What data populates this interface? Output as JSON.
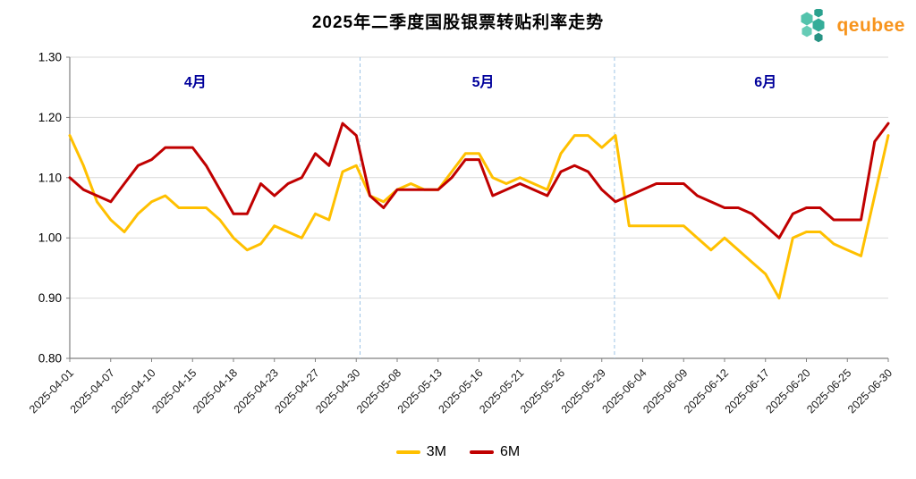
{
  "header": {
    "logo_text": "qeubee"
  },
  "colors": {
    "line_3m": "#FFC000",
    "line_6m": "#C00000",
    "grid": "#D9D9D9",
    "axis": "#808080",
    "divider": "#9DC3E6",
    "month_label": "#00009B",
    "title_text": "#000000",
    "logo_orange": "#F7941D",
    "logo_hex": [
      "#53C3AC",
      "#2AA18E",
      "#35AD99",
      "#66CCB6",
      "#279384"
    ]
  },
  "chart_data": {
    "type": "line",
    "title": "2025年二季度国股银票转贴利率走势",
    "xlabel": "",
    "ylabel": "",
    "ylim": [
      0.8,
      1.3
    ],
    "grid": true,
    "legend_position": "bottom",
    "y_ticks": [
      1.3,
      1.2,
      1.1,
      1.0,
      0.9,
      0.8
    ],
    "x": [
      "2025-04-01",
      "2025-04-02",
      "2025-04-03",
      "2025-04-07",
      "2025-04-08",
      "2025-04-09",
      "2025-04-10",
      "2025-04-11",
      "2025-04-14",
      "2025-04-15",
      "2025-04-16",
      "2025-04-17",
      "2025-04-18",
      "2025-04-21",
      "2025-04-22",
      "2025-04-23",
      "2025-04-24",
      "2025-04-25",
      "2025-04-27",
      "2025-04-28",
      "2025-04-29",
      "2025-04-30",
      "2025-05-06",
      "2025-05-07",
      "2025-05-08",
      "2025-05-09",
      "2025-05-12",
      "2025-05-13",
      "2025-05-14",
      "2025-05-15",
      "2025-05-16",
      "2025-05-19",
      "2025-05-20",
      "2025-05-21",
      "2025-05-22",
      "2025-05-23",
      "2025-05-26",
      "2025-05-27",
      "2025-05-28",
      "2025-05-29",
      "2025-05-30",
      "2025-06-03",
      "2025-06-04",
      "2025-06-05",
      "2025-06-06",
      "2025-06-09",
      "2025-06-10",
      "2025-06-11",
      "2025-06-12",
      "2025-06-13",
      "2025-06-16",
      "2025-06-17",
      "2025-06-18",
      "2025-06-19",
      "2025-06-20",
      "2025-06-23",
      "2025-06-24",
      "2025-06-25",
      "2025-06-26",
      "2025-06-27",
      "2025-06-30"
    ],
    "x_tick_labels": [
      "2025-04-01",
      "2025-04-07",
      "2025-04-10",
      "2025-04-15",
      "2025-04-18",
      "2025-04-23",
      "2025-04-27",
      "2025-04-30",
      "2025-05-08",
      "2025-05-13",
      "2025-05-16",
      "2025-05-21",
      "2025-05-26",
      "2025-05-29",
      "2025-06-04",
      "2025-06-09",
      "2025-06-12",
      "2025-06-17",
      "2025-06-20",
      "2025-06-25",
      "2025-06-30"
    ],
    "months": [
      {
        "label": "4月",
        "index": 9.2
      },
      {
        "label": "5月",
        "index": 30.3
      },
      {
        "label": "6月",
        "index": 51.0
      }
    ],
    "dividers_index": [
      21.28,
      39.93
    ],
    "series": [
      {
        "name": "3M",
        "color": "#FFC000",
        "values": [
          1.17,
          1.12,
          1.06,
          1.03,
          1.01,
          1.04,
          1.06,
          1.07,
          1.05,
          1.05,
          1.05,
          1.03,
          1.0,
          0.98,
          0.99,
          1.02,
          1.01,
          1.0,
          1.04,
          1.03,
          1.11,
          1.12,
          1.07,
          1.06,
          1.08,
          1.09,
          1.08,
          1.08,
          1.11,
          1.14,
          1.14,
          1.1,
          1.09,
          1.1,
          1.09,
          1.08,
          1.14,
          1.17,
          1.17,
          1.15,
          1.17,
          1.02,
          1.02,
          1.02,
          1.02,
          1.02,
          1.0,
          0.98,
          1.0,
          0.98,
          0.96,
          0.94,
          0.9,
          1.0,
          1.01,
          1.01,
          0.99,
          0.98,
          0.97,
          1.07,
          1.17
        ]
      },
      {
        "name": "6M",
        "color": "#C00000",
        "values": [
          1.1,
          1.08,
          1.07,
          1.06,
          1.09,
          1.12,
          1.13,
          1.15,
          1.15,
          1.15,
          1.12,
          1.08,
          1.04,
          1.04,
          1.09,
          1.07,
          1.09,
          1.1,
          1.14,
          1.12,
          1.19,
          1.17,
          1.07,
          1.05,
          1.08,
          1.08,
          1.08,
          1.08,
          1.1,
          1.13,
          1.13,
          1.07,
          1.08,
          1.09,
          1.08,
          1.07,
          1.11,
          1.12,
          1.11,
          1.08,
          1.06,
          1.07,
          1.08,
          1.09,
          1.09,
          1.09,
          1.07,
          1.06,
          1.05,
          1.05,
          1.04,
          1.02,
          1.0,
          1.04,
          1.05,
          1.05,
          1.03,
          1.03,
          1.03,
          1.16,
          1.19
        ]
      }
    ]
  }
}
